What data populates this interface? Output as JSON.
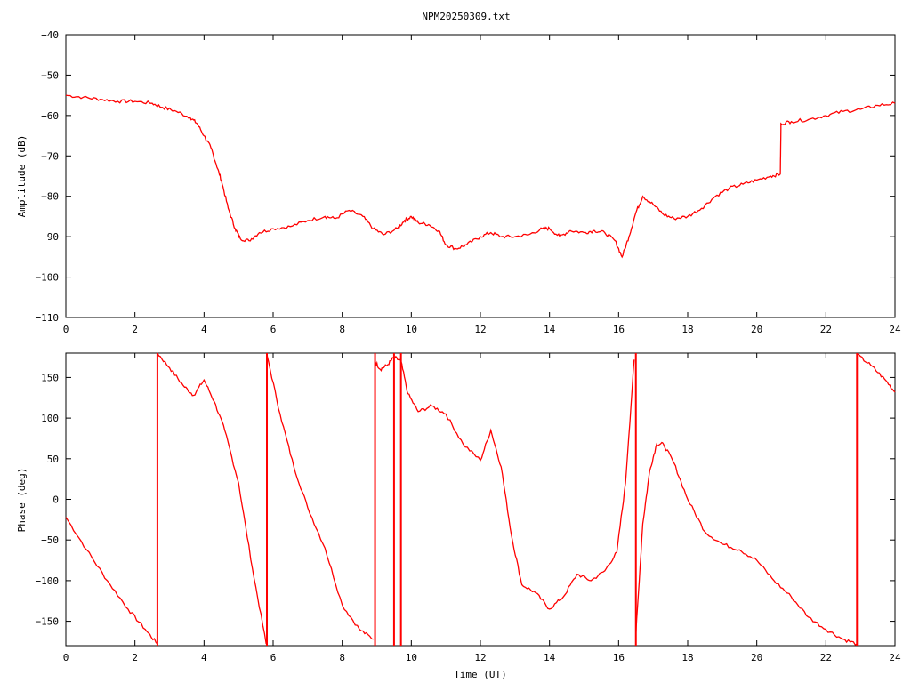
{
  "chart_data": [
    {
      "type": "line",
      "title": "NPM20250309.txt",
      "xlabel": "",
      "ylabel": "Amplitude (dB)",
      "xlim": [
        0,
        24
      ],
      "ylim": [
        -110,
        -40
      ],
      "xticks": [
        0,
        2,
        4,
        6,
        8,
        10,
        12,
        14,
        16,
        18,
        20,
        22,
        24
      ],
      "yticks": [
        -110,
        -100,
        -90,
        -80,
        -70,
        -60,
        -50,
        -40
      ],
      "color": "#ff0000",
      "grid": false,
      "series": [
        {
          "x": [
            0,
            0.5,
            1.0,
            1.5,
            2.0,
            2.5,
            2.8,
            3.2,
            3.6,
            3.8,
            4.0,
            4.2,
            4.35,
            4.5,
            4.7,
            4.9,
            5.05,
            5.3,
            5.6,
            6.0,
            6.5,
            7.0,
            7.5,
            7.8,
            8.2,
            8.6,
            8.9,
            9.2,
            9.6,
            9.8,
            10.0,
            10.2,
            10.5,
            10.8,
            11.0,
            11.3,
            11.6,
            12.0,
            12.3,
            12.6,
            13.0,
            13.4,
            13.8,
            14.0,
            14.3,
            14.6,
            15.0,
            15.3,
            15.6,
            15.9,
            16.1,
            16.3,
            16.5,
            16.7,
            17.0,
            17.3,
            17.6,
            18.0,
            18.4,
            18.8,
            19.2,
            19.6,
            20.0,
            20.4,
            20.68,
            20.7,
            21.0,
            21.5,
            22.0,
            22.5,
            23.0,
            23.5,
            24.0
          ],
          "y": [
            -55,
            -55.5,
            -56,
            -56.5,
            -56.5,
            -57,
            -58,
            -59,
            -60.5,
            -62,
            -65,
            -68,
            -72,
            -76,
            -83,
            -88,
            -90.5,
            -91,
            -89,
            -88,
            -87.5,
            -86,
            -85,
            -85.5,
            -83.5,
            -85,
            -88,
            -89.5,
            -88,
            -86,
            -85,
            -86.5,
            -87,
            -88.5,
            -92,
            -93,
            -92,
            -90,
            -89,
            -90,
            -90,
            -89.5,
            -88,
            -88,
            -90,
            -88.5,
            -89,
            -88.5,
            -89,
            -91,
            -95,
            -90,
            -84,
            -80,
            -82,
            -84.5,
            -85.5,
            -85,
            -83,
            -80,
            -78,
            -77,
            -76,
            -75,
            -74.5,
            -62,
            -61.5,
            -61,
            -60,
            -59,
            -58.5,
            -57.5,
            -57
          ]
        }
      ]
    },
    {
      "type": "line",
      "title": "",
      "xlabel": "Time (UT)",
      "ylabel": "Phase (deg)",
      "xlim": [
        0,
        24
      ],
      "ylim": [
        -180,
        180
      ],
      "xticks": [
        0,
        2,
        4,
        6,
        8,
        10,
        12,
        14,
        16,
        18,
        20,
        22,
        24
      ],
      "yticks": [
        -150,
        -100,
        -50,
        0,
        50,
        100,
        150
      ],
      "color": "#ff0000",
      "grid": false,
      "segments": [
        {
          "x": [
            0,
            0.6,
            1.2,
            1.8,
            2.3,
            2.65
          ],
          "y": [
            -22,
            -62,
            -100,
            -135,
            -160,
            -178
          ]
        },
        {
          "x": [
            2.65,
            3.0,
            3.4,
            3.7,
            4.0,
            4.3,
            4.6,
            5.0,
            5.4,
            5.8
          ],
          "y": [
            180,
            162,
            140,
            128,
            147,
            120,
            85,
            20,
            -85,
            -178
          ]
        },
        {
          "x": [
            5.82,
            6.2,
            6.6,
            7.0,
            7.5,
            8.0,
            8.5,
            8.9
          ],
          "y": [
            178,
            105,
            40,
            -10,
            -60,
            -130,
            -160,
            -172
          ]
        },
        {
          "x": [
            8.95,
            9.1,
            9.3,
            9.5,
            9.7,
            9.9,
            10.2,
            10.6,
            11.0,
            11.5,
            12.0,
            12.3,
            12.6,
            12.9,
            13.2,
            13.6,
            14.0,
            14.4,
            14.8,
            15.2,
            15.6,
            15.95,
            16.2,
            16.45
          ],
          "y": [
            170,
            160,
            165,
            175,
            170,
            130,
            108,
            115,
            105,
            68,
            48,
            85,
            40,
            -45,
            -105,
            -115,
            -135,
            -120,
            -92,
            -100,
            -88,
            -65,
            20,
            172
          ]
        },
        {
          "x": [
            16.5,
            16.7,
            16.9,
            17.1,
            17.3,
            17.6,
            18.0,
            18.5,
            19.0,
            19.5,
            20.0,
            20.5,
            21.0,
            21.5,
            22.0,
            22.5,
            22.9
          ],
          "y": [
            -165,
            -30,
            35,
            68,
            68,
            45,
            0,
            -40,
            -55,
            -62,
            -75,
            -100,
            -120,
            -145,
            -160,
            -172,
            -178
          ]
        },
        {
          "x": [
            22.9,
            23.3,
            23.7,
            24.0
          ],
          "y": [
            178,
            165,
            148,
            132
          ]
        }
      ],
      "jumps": [
        2.65,
        5.82,
        8.95,
        9.5,
        9.7,
        16.5,
        22.9
      ]
    }
  ]
}
